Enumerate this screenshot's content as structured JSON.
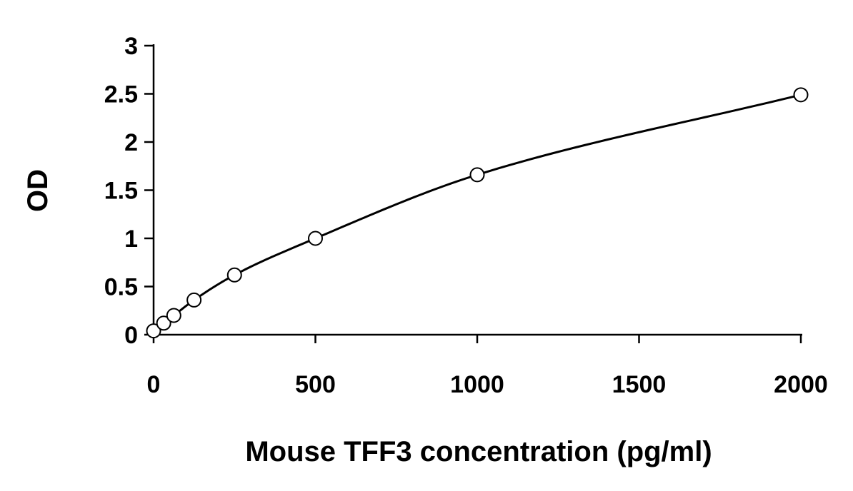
{
  "chart_data": {
    "type": "scatter",
    "title": "",
    "xlabel": "Mouse TFF3 concentration (pg/ml)",
    "ylabel": "OD",
    "xlim": [
      0,
      2000
    ],
    "ylim": [
      0,
      3
    ],
    "x_ticks": [
      "0",
      "500",
      "1000",
      "1500",
      "2000"
    ],
    "y_ticks": [
      "0",
      "0.5",
      "1",
      "1.5",
      "2",
      "2.5",
      "3"
    ],
    "grid": false,
    "legend": "none",
    "series": [
      {
        "x": [
          0,
          31.25,
          62.5,
          125,
          250,
          500,
          1000,
          2000
        ],
        "y": [
          0.04,
          0.12,
          0.2,
          0.36,
          0.62,
          1.0,
          1.66,
          2.49
        ]
      }
    ],
    "fit_curve": true,
    "colors": {
      "line": "#000000",
      "marker_stroke": "#000000",
      "marker_fill": "#ffffff"
    }
  }
}
